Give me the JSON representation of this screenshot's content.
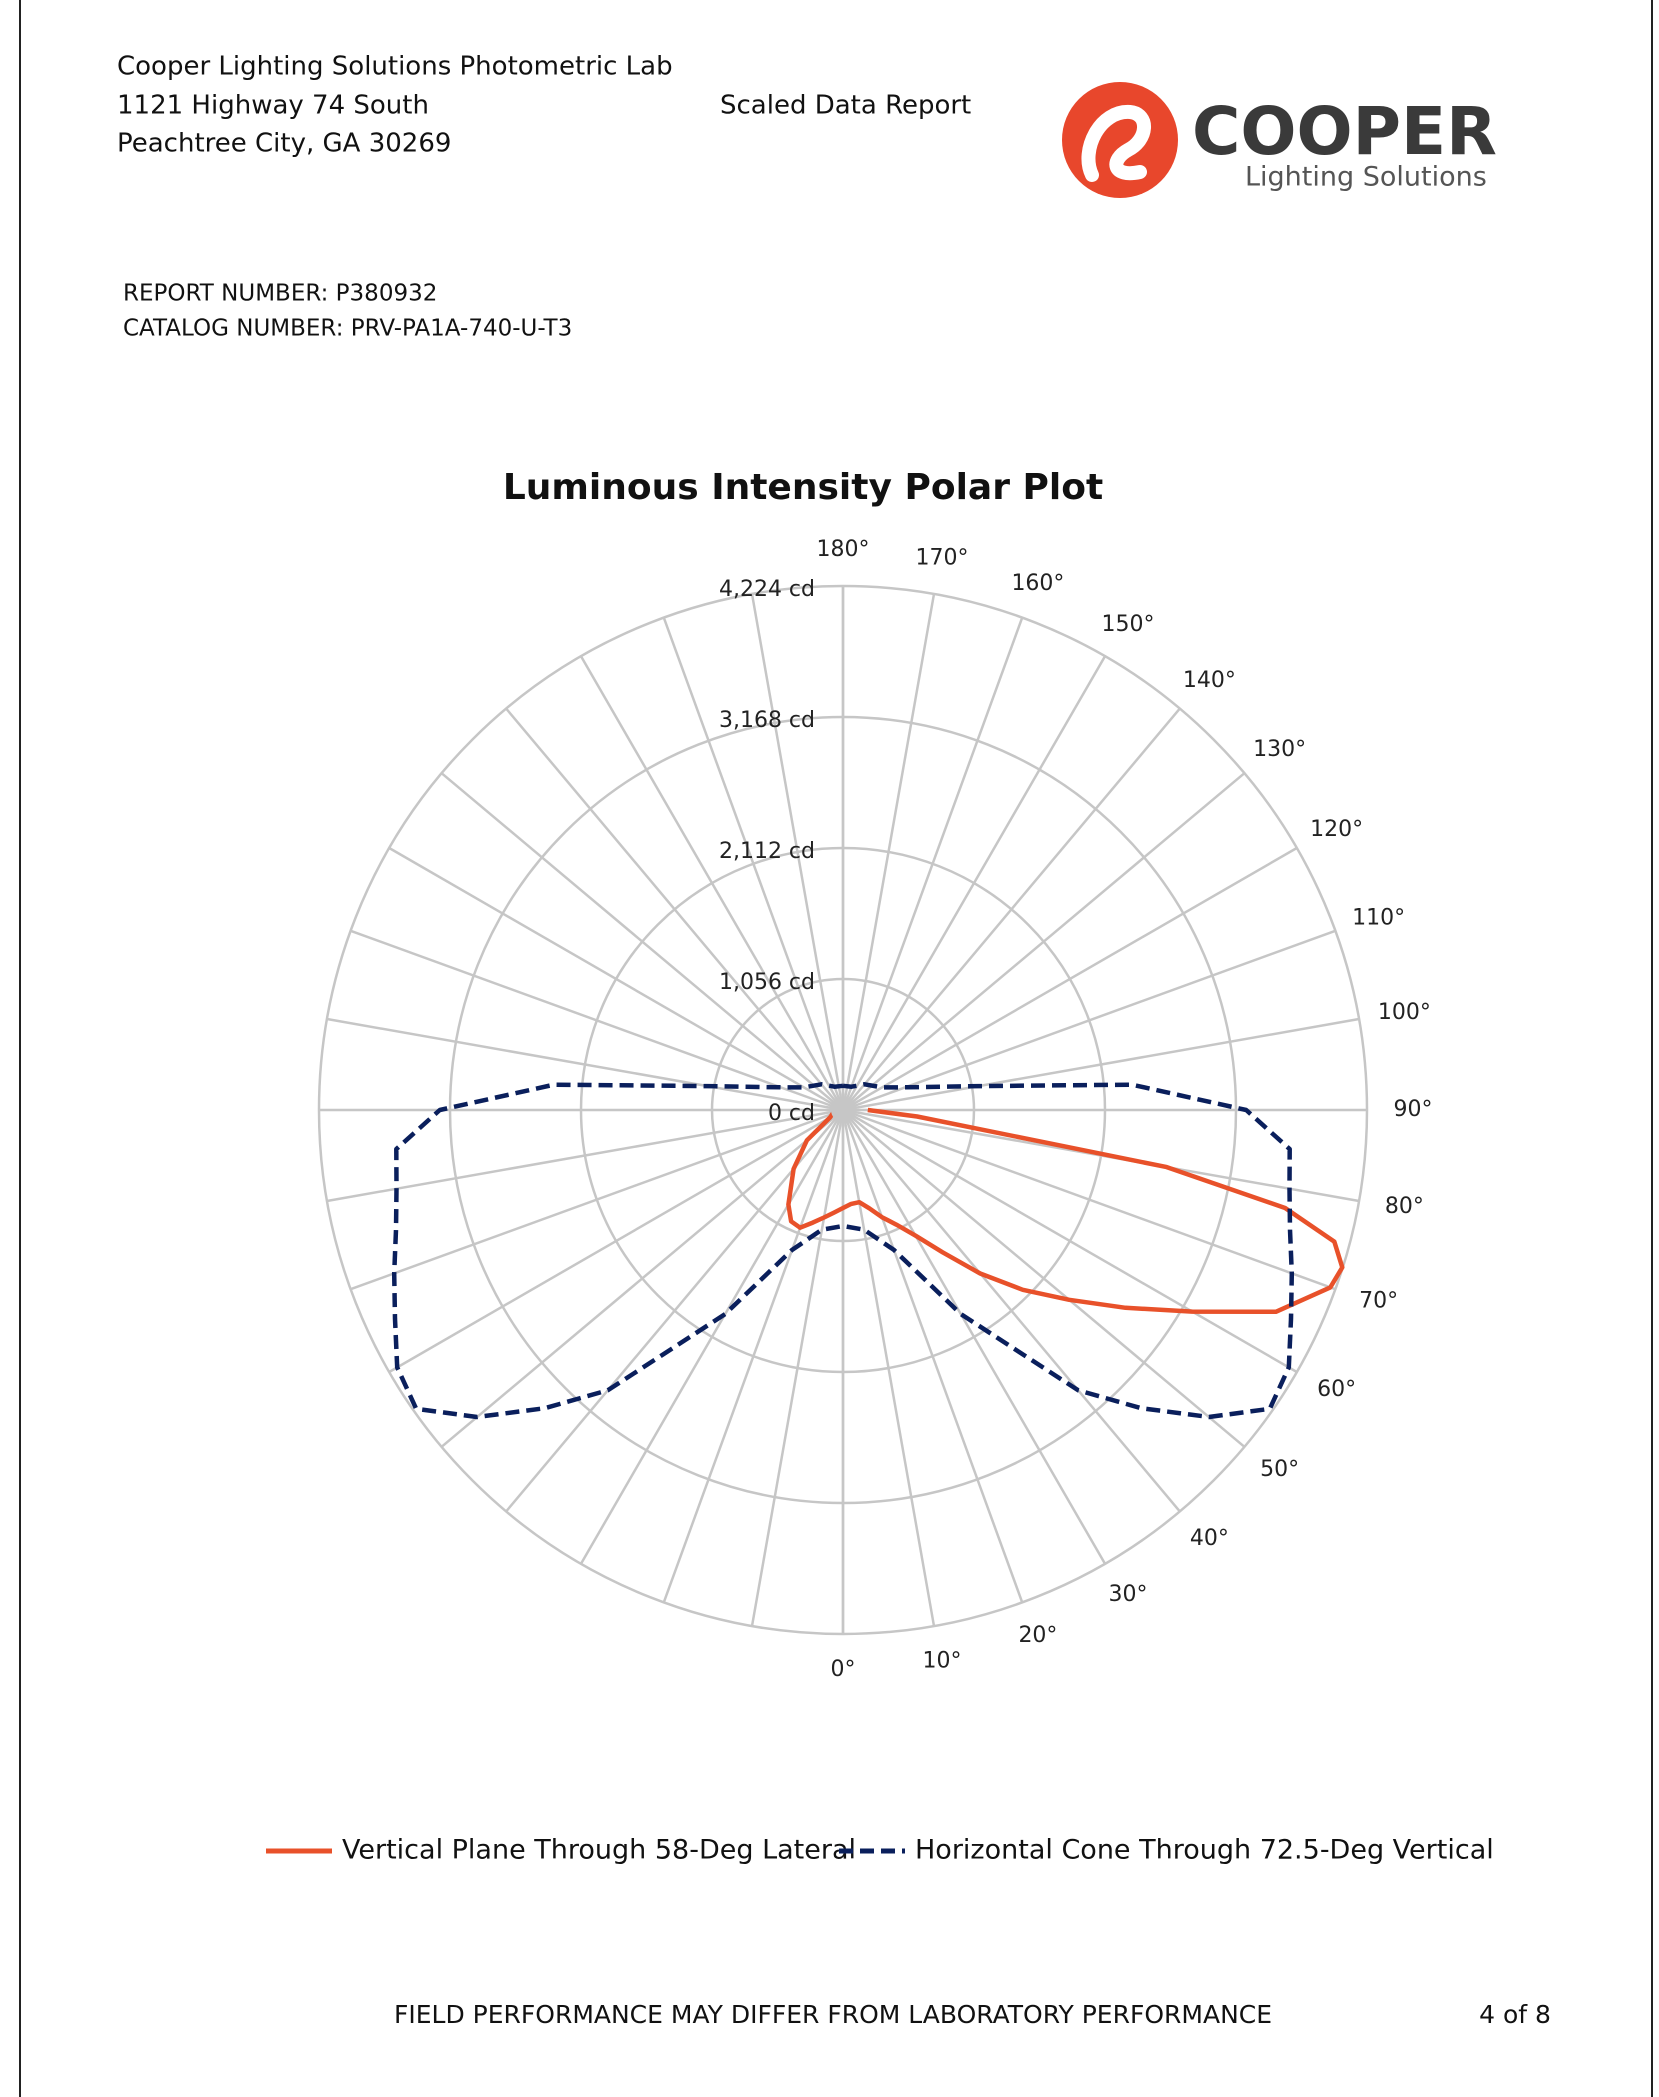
{
  "header": {
    "lab": "Cooper Lighting Solutions Photometric Lab",
    "address": "1121 Highway 74 South",
    "city": "Peachtree City, GA 30269",
    "report_title": "Scaled Data Report",
    "report_number": "REPORT NUMBER: P380932",
    "catalog_number": "CATALOG NUMBER: PRV-PA1A-740-U-T3"
  },
  "logo": {
    "brand": "COOPER",
    "tagline": "Lighting Solutions"
  },
  "chart_data": {
    "type": "polar",
    "title": "Luminous Intensity Polar Plot",
    "ylim": [
      0,
      4224
    ],
    "yticks": [
      {
        "value": 0,
        "label": "0 cd"
      },
      {
        "value": 1056,
        "label": "1,056 cd"
      },
      {
        "value": 2112,
        "label": "2,112 cd"
      },
      {
        "value": 3168,
        "label": "3,168 cd"
      },
      {
        "value": 4224,
        "label": "4,224 cd"
      }
    ],
    "xticks": [
      {
        "value": 0,
        "label": "0°"
      },
      {
        "value": 10,
        "label": "10°"
      },
      {
        "value": 20,
        "label": "20°"
      },
      {
        "value": 30,
        "label": "30°"
      },
      {
        "value": 40,
        "label": "40°"
      },
      {
        "value": 50,
        "label": "50°"
      },
      {
        "value": 60,
        "label": "60°"
      },
      {
        "value": 70,
        "label": "70°"
      },
      {
        "value": 80,
        "label": "80°"
      },
      {
        "value": 90,
        "label": "90°"
      },
      {
        "value": 100,
        "label": "100°"
      },
      {
        "value": 110,
        "label": "110°"
      },
      {
        "value": 120,
        "label": "120°"
      },
      {
        "value": 130,
        "label": "130°"
      },
      {
        "value": 140,
        "label": "140°"
      },
      {
        "value": 150,
        "label": "150°"
      },
      {
        "value": 160,
        "label": "160°"
      },
      {
        "value": 170,
        "label": "170°"
      },
      {
        "value": 180,
        "label": "180°"
      }
    ],
    "grid": true,
    "series": [
      {
        "name": "Vertical Plane Through 58-Deg Lateral",
        "color": "#e8512a",
        "dash": false,
        "x": [
          -90,
          -80,
          -70,
          -60,
          -50,
          -40,
          -30,
          -25,
          -20,
          -15,
          -10,
          -5,
          0,
          5,
          10,
          15,
          20,
          25,
          30,
          35,
          40,
          45,
          50,
          55,
          60,
          65,
          70,
          72.5,
          75,
          77.5,
          80,
          85,
          90
        ],
        "values": [
          50,
          70,
          90,
          120,
          380,
          620,
          880,
          990,
          1010,
          940,
          880,
          830,
          790,
          760,
          755,
          820,
          920,
          1020,
          1170,
          1400,
          1720,
          2050,
          2380,
          2780,
          3250,
          3850,
          4180,
          4220,
          4100,
          3650,
          2650,
          600,
          200
        ]
      },
      {
        "name": "Horizontal Cone Through 72.5-Deg Vertical",
        "color": "#0a1f5c",
        "dash": true,
        "x": [
          -180,
          -160,
          -140,
          -120,
          -110,
          -100,
          -95,
          -90,
          -85,
          -80,
          -75,
          -70,
          -65,
          -60,
          -55,
          -50,
          -45,
          -40,
          -30,
          -20,
          -10,
          0,
          10,
          20,
          30,
          40,
          45,
          50,
          55,
          60,
          65,
          70,
          75,
          80,
          85,
          90,
          95,
          100,
          110,
          120,
          140,
          160,
          180
        ],
        "values": [
          195,
          200,
          270,
          365,
          535,
          1110,
          2340,
          3250,
          3615,
          3655,
          3730,
          3850,
          3985,
          4150,
          4200,
          3850,
          3400,
          2950,
          1900,
          1200,
          980,
          935,
          980,
          1200,
          1900,
          2950,
          3400,
          3850,
          4200,
          4150,
          3985,
          3850,
          3730,
          3655,
          3615,
          3250,
          2340,
          1110,
          535,
          365,
          270,
          200,
          195
        ]
      }
    ]
  },
  "footer": {
    "disclaimer": "FIELD PERFORMANCE MAY DIFFER FROM LABORATORY PERFORMANCE",
    "page": "4 of 8"
  }
}
